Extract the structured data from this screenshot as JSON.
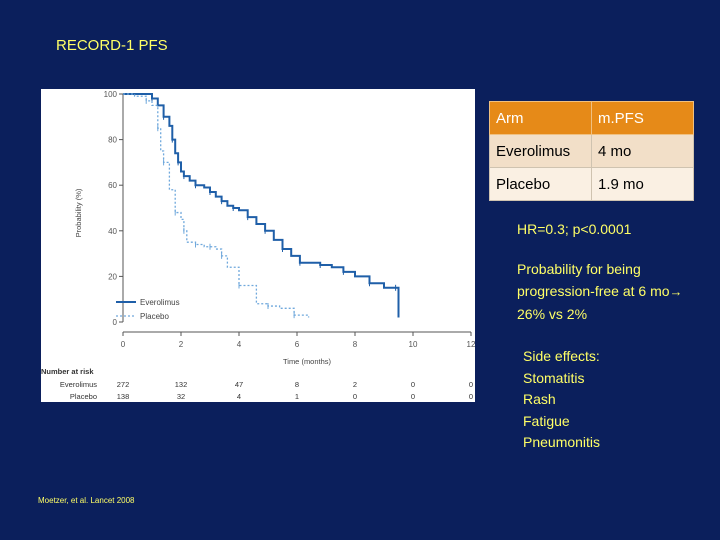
{
  "slide": {
    "title": "RECORD-1 PFS",
    "reference": "Moetzer, et al. Lancet 2008"
  },
  "table": {
    "headers": [
      "Arm",
      "m.PFS"
    ],
    "rows": [
      [
        "Everolimus",
        "4 mo"
      ],
      [
        "Placebo",
        "1.9 mo"
      ]
    ]
  },
  "stats": {
    "hr_text": "HR=0.3; p<0.0001",
    "prob_line1": "Probability for being progression-free at 6 mo",
    "prob_line2": " 26% vs 2%",
    "side_effects_title": "Side effects:",
    "side_effects": [
      "Stomatitis",
      "Rash",
      "Fatigue",
      "Pneumonitis"
    ]
  },
  "colors": {
    "background": "#0b1f5c",
    "accent_text": "#ffff66",
    "table_header": "#e68a18",
    "everolimus_line": "#1f5fa8",
    "placebo_line": "#6fa8dc"
  },
  "chart_data": {
    "type": "line",
    "title": "",
    "xlabel": "Time (months)",
    "ylabel": "Probability (%)",
    "xlim": [
      0,
      12
    ],
    "ylim": [
      0,
      100
    ],
    "x_ticks": [
      0,
      2,
      4,
      6,
      8,
      10,
      12
    ],
    "y_ticks": [
      0,
      20,
      40,
      60,
      80,
      100
    ],
    "legend": [
      "Everolimus",
      "Placebo"
    ],
    "series": [
      {
        "name": "Everolimus",
        "x": [
          0,
          0.9,
          1.0,
          1.2,
          1.4,
          1.6,
          1.7,
          1.8,
          1.9,
          2.0,
          2.1,
          2.3,
          2.5,
          2.8,
          3.0,
          3.2,
          3.4,
          3.6,
          3.8,
          4.0,
          4.3,
          4.6,
          4.9,
          5.2,
          5.5,
          5.8,
          6.1,
          6.4,
          6.8,
          7.2,
          7.6,
          8.0,
          8.5,
          9.0,
          9.4,
          9.5
        ],
        "y": [
          100,
          100,
          98,
          95,
          90,
          86,
          80,
          74,
          70,
          66,
          64,
          62,
          60,
          59,
          57,
          55,
          53,
          51,
          50,
          49,
          46,
          43,
          40,
          36,
          32,
          29,
          26,
          26,
          25,
          24,
          22,
          20,
          17,
          15,
          15,
          2
        ]
      },
      {
        "name": "Placebo",
        "x": [
          0,
          0.4,
          0.8,
          1.0,
          1.2,
          1.3,
          1.4,
          1.6,
          1.8,
          2.0,
          2.1,
          2.2,
          2.5,
          2.8,
          3.0,
          3.2,
          3.4,
          3.6,
          4.0,
          4.6,
          5.0,
          5.4,
          5.9,
          6.4
        ],
        "y": [
          100,
          99,
          97,
          95,
          85,
          75,
          70,
          58,
          48,
          45,
          40,
          35,
          34,
          33,
          33,
          32,
          29,
          24,
          16,
          8,
          7,
          6,
          3,
          2
        ]
      }
    ],
    "risk_table": {
      "label": "Number at risk",
      "time_points": [
        0,
        2,
        4,
        6,
        8,
        10,
        12
      ],
      "rows": [
        {
          "name": "Everolimus",
          "values": [
            "272",
            "132",
            "47",
            "8",
            "2",
            "0",
            "0"
          ]
        },
        {
          "name": "Placebo",
          "values": [
            "138",
            "32",
            "4",
            "1",
            "0",
            "0",
            "0"
          ]
        }
      ]
    }
  }
}
